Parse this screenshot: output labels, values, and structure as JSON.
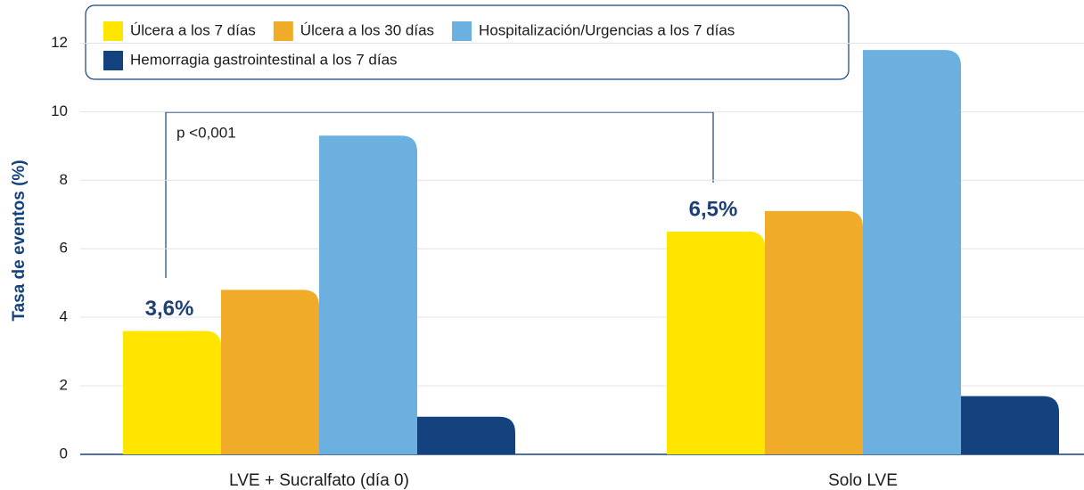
{
  "chart_data": {
    "type": "bar",
    "ylabel": "Tasa de eventos (%)",
    "categories": [
      "LVE + Sucralfato (día 0)",
      "Solo LVE"
    ],
    "series": [
      {
        "name": "Úlcera a los 7 días",
        "color": "#ffe500",
        "values": [
          3.6,
          6.5
        ],
        "value_labels": [
          "3,6%",
          "6,5%"
        ]
      },
      {
        "name": "Úlcera a los 30 días",
        "color": "#f0ab28",
        "values": [
          4.8,
          7.1
        ]
      },
      {
        "name": "Hospitalización/Urgencias a los 7 días",
        "color": "#6cb0e0",
        "values": [
          9.3,
          11.8
        ]
      },
      {
        "name": "Hemorragia gastrointestinal a los 7 días",
        "color": "#13427f",
        "values": [
          1.1,
          1.7
        ]
      }
    ],
    "annotation": "p <0,001",
    "ylim": [
      0,
      13
    ],
    "yticks": [
      0,
      2,
      4,
      6,
      8,
      10,
      12
    ],
    "grid": true
  }
}
